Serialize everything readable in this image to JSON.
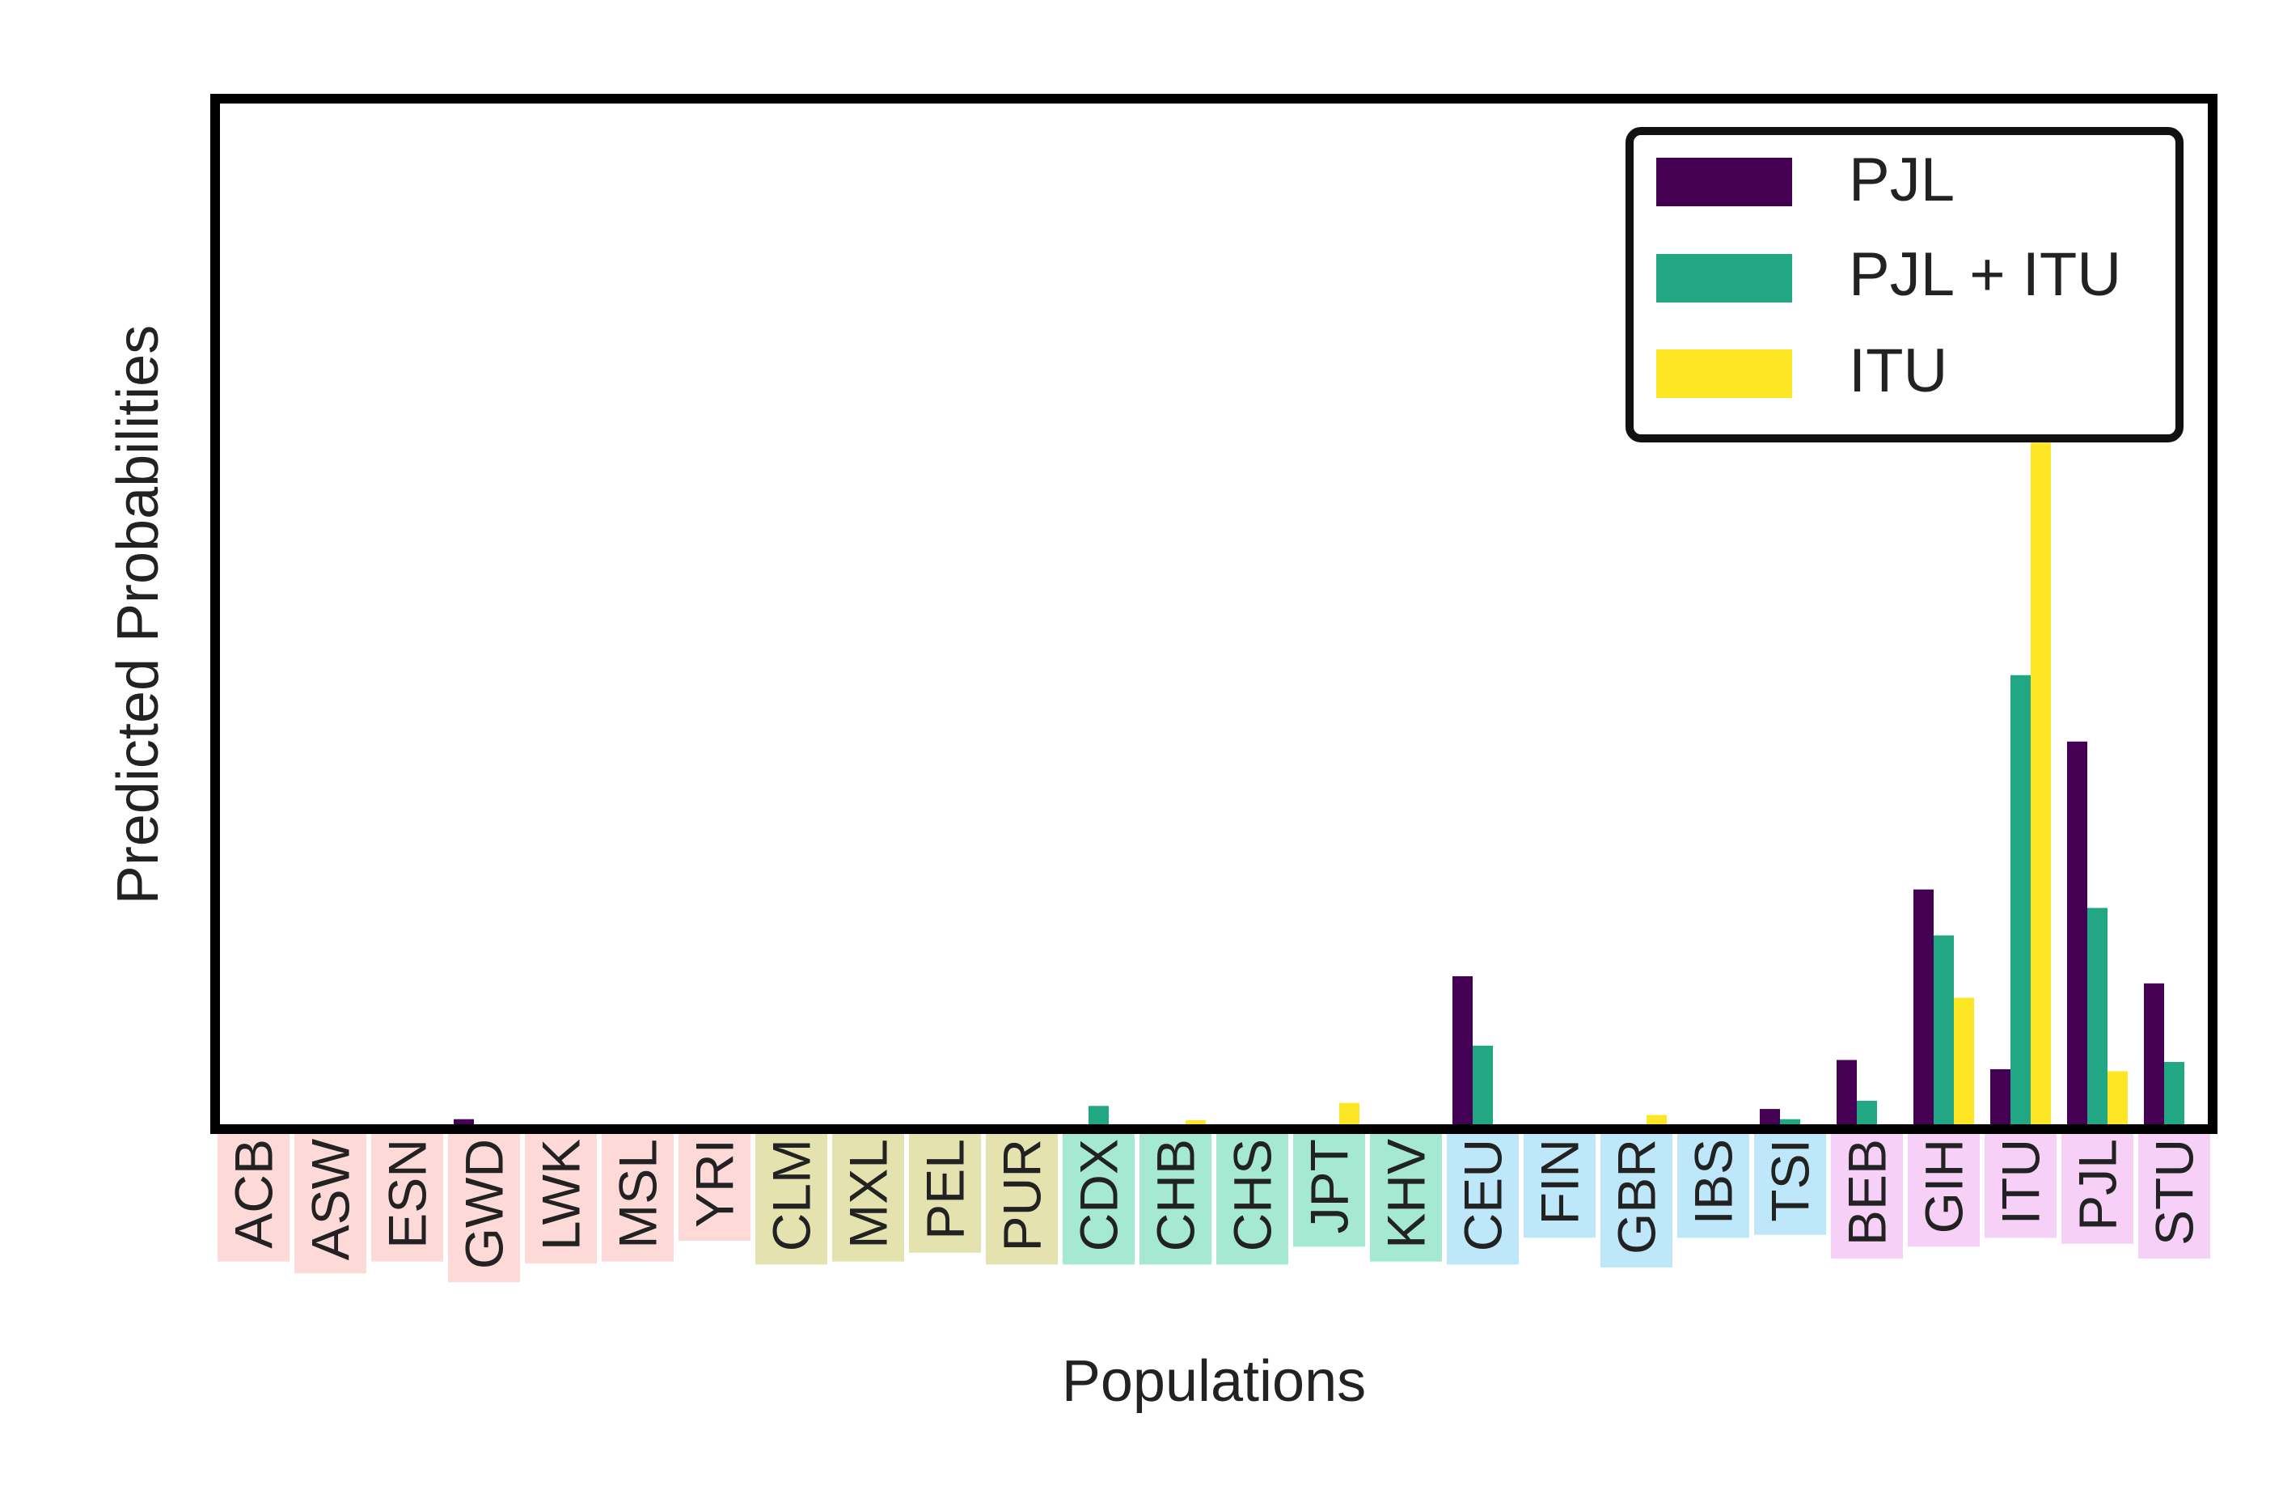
{
  "chart_data": {
    "type": "bar",
    "title": "",
    "xlabel": "Populations",
    "ylabel": "Predicted Probabilities",
    "ylim": [
      0,
      1
    ],
    "grid": false,
    "legend": {
      "placement": "top-right",
      "entries": [
        "PJL",
        "PJL + ITU",
        "ITU"
      ]
    },
    "categories": [
      "ACB",
      "ASW",
      "ESN",
      "GWD",
      "LWK",
      "MSL",
      "YRI",
      "CLM",
      "MXL",
      "PEL",
      "PUR",
      "CDX",
      "CHB",
      "CHS",
      "JPT",
      "KHV",
      "CEU",
      "FIN",
      "GBR",
      "IBS",
      "TSI",
      "BEB",
      "GIH",
      "ITU",
      "PJL",
      "STU"
    ],
    "category_group_colors": [
      "#fddad8",
      "#fddad8",
      "#fddad8",
      "#fddad8",
      "#fddad8",
      "#fddad8",
      "#fddad8",
      "#e4e3b0",
      "#e4e3b0",
      "#e4e3b0",
      "#e4e3b0",
      "#a5e9d3",
      "#a5e9d3",
      "#a5e9d3",
      "#a5e9d3",
      "#a5e9d3",
      "#bee8f9",
      "#bee8f9",
      "#bee8f9",
      "#bee8f9",
      "#bee8f9",
      "#f6d0f7",
      "#f6d0f7",
      "#f6d0f7",
      "#f6d0f7",
      "#f6d0f7"
    ],
    "series": [
      {
        "name": "PJL",
        "color": "#440154",
        "values": [
          0,
          0,
          0,
          0.005,
          0,
          0,
          0,
          0,
          0,
          0,
          0,
          0,
          0,
          0,
          0,
          0,
          0.145,
          0,
          0,
          0,
          0.015,
          0.063,
          0.23,
          0.054,
          0.375,
          0.138
        ]
      },
      {
        "name": "PJL + ITU",
        "color": "#21a784",
        "values": [
          0,
          0,
          0,
          0,
          0,
          0,
          0,
          0,
          0,
          0,
          0,
          0.018,
          0,
          0,
          0,
          0,
          0.077,
          0,
          0,
          0,
          0.005,
          0.023,
          0.185,
          0.44,
          0.212,
          0.061
        ]
      },
      {
        "name": "ITU",
        "color": "#fde725",
        "values": [
          0,
          0,
          0,
          0,
          0,
          0,
          0,
          0,
          0,
          0,
          0,
          0,
          0.004,
          0,
          0.021,
          0,
          0,
          0,
          0.009,
          0,
          0,
          0,
          0.124,
          0.814,
          0.052,
          0
        ]
      }
    ]
  }
}
